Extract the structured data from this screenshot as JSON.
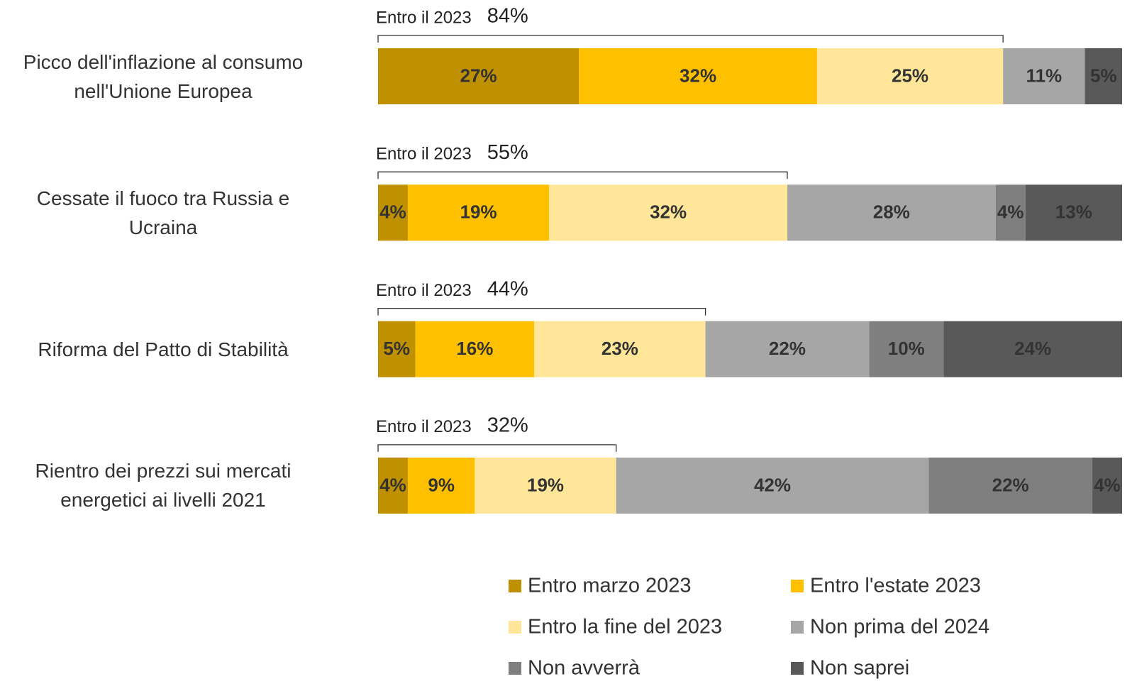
{
  "chart_data": {
    "type": "stacked-bar-horizontal",
    "categories": [
      "Picco dell'inflazione al consumo nell'Unione Europea",
      "Cessate il fuoco tra Russia e Ucraina",
      "Riforma del Patto di Stabilità",
      "Rientro dei prezzi sui mercati energetici ai livelli 2021"
    ],
    "series": [
      {
        "name": "Entro marzo 2023",
        "color": "#bf9000",
        "values": [
          27,
          4,
          5,
          4
        ],
        "value_labels": [
          "27%",
          "4%",
          "5%",
          "4%"
        ]
      },
      {
        "name": "Entro l'estate 2023",
        "color": "#ffc000",
        "values": [
          32,
          19,
          16,
          9
        ],
        "value_labels": [
          "32%",
          "19%",
          "16%",
          "9%"
        ]
      },
      {
        "name": "Entro la fine del 2023",
        "color": "#ffe699",
        "values": [
          25,
          32,
          23,
          19
        ],
        "value_labels": [
          "25%",
          "32%",
          "23%",
          "19%"
        ]
      },
      {
        "name": "Non prima del 2024",
        "color": "#a6a6a6",
        "values": [
          11,
          28,
          22,
          42
        ],
        "value_labels": [
          "11%",
          "28%",
          "22%",
          "42%"
        ]
      },
      {
        "name": "Non avverrà",
        "color": "#7f7f7f",
        "values": [
          null,
          4,
          10,
          22
        ],
        "value_labels": [
          null,
          "4%",
          "10%",
          "22%"
        ]
      },
      {
        "name": "Non saprei",
        "color": "#595959",
        "values": [
          5,
          13,
          24,
          4
        ],
        "value_labels": [
          "5%",
          "13%",
          "24%",
          "4%"
        ]
      }
    ],
    "annotation": {
      "text": "Entro il 2023",
      "values": [
        84,
        55,
        44,
        32
      ],
      "value_labels": [
        "84%",
        "55%",
        "44%",
        "32%"
      ]
    }
  }
}
